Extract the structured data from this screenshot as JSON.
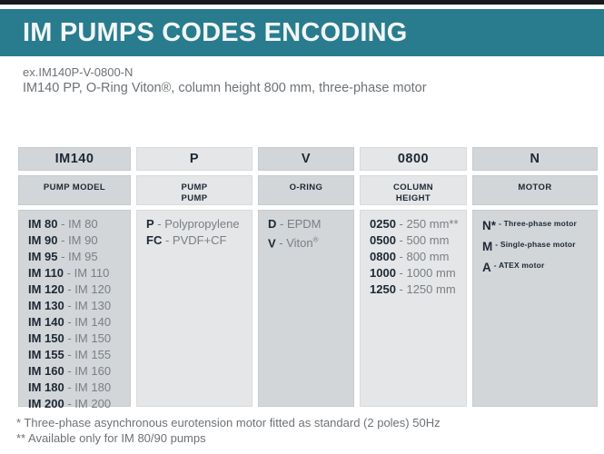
{
  "colors": {
    "accent_teal": "#287c8e",
    "top_bar": "#17191b",
    "dark_text": "#1d2834",
    "muted_text": "#6d7277",
    "cell_dark": "#d2d6d9",
    "cell_light": "#e4e6e8"
  },
  "header": {
    "title": "IM PUMPS CODES ENCODING",
    "example_code": "ex.IM140P-V-0800-N",
    "example_description": "IM140 PP, O-Ring Viton®, column height 800 mm, three-phase motor"
  },
  "table": {
    "columns": [
      {
        "code": "IM140",
        "label_lines": [
          "PUMP MODEL"
        ],
        "entry_style": "normal",
        "entries": [
          {
            "code": "IM 80",
            "desc": "IM 80"
          },
          {
            "code": "IM 90",
            "desc": "IM 90"
          },
          {
            "code": "IM 95",
            "desc": "IM 95"
          },
          {
            "code": "IM 110",
            "desc": "IM 110"
          },
          {
            "code": "IM 120",
            "desc": "IM 120"
          },
          {
            "code": "IM 130",
            "desc": "IM 130"
          },
          {
            "code": "IM 140",
            "desc": "IM 140"
          },
          {
            "code": "IM 150",
            "desc": "IM 150"
          },
          {
            "code": "IM 155",
            "desc": "IM 155"
          },
          {
            "code": "IM 160",
            "desc": "IM 160"
          },
          {
            "code": "IM 180",
            "desc": "IM 180"
          },
          {
            "code": "IM 200",
            "desc": "IM 200"
          }
        ]
      },
      {
        "code": "P",
        "label_lines": [
          "PUMP",
          "PUMP"
        ],
        "entry_style": "normal",
        "entries": [
          {
            "code": "P",
            "desc": "Polypropylene"
          },
          {
            "code": "FC",
            "desc": "PVDF+CF"
          }
        ]
      },
      {
        "code": "V",
        "label_lines": [
          "O-RING"
        ],
        "entry_style": "normal",
        "entries": [
          {
            "code": "D",
            "desc": "EPDM"
          },
          {
            "code": "V",
            "desc": "Viton®"
          }
        ]
      },
      {
        "code": "0800",
        "label_lines": [
          "COLUMN",
          "HEIGHT"
        ],
        "entry_style": "normal",
        "entries": [
          {
            "code": "0250",
            "desc": "250 mm**"
          },
          {
            "code": "0500",
            "desc": "500 mm"
          },
          {
            "code": "0800",
            "desc": "800 mm"
          },
          {
            "code": "1000",
            "desc": "1000 mm"
          },
          {
            "code": "1250",
            "desc": "1250 mm"
          }
        ]
      },
      {
        "code": "N",
        "label_lines": [
          "MOTOR"
        ],
        "entry_style": "motor",
        "entries": [
          {
            "code": "N*",
            "desc": "Three-phase motor"
          },
          {
            "code": "M",
            "desc": "Single-phase motor"
          },
          {
            "code": "A",
            "desc": "ATEX motor"
          }
        ]
      }
    ]
  },
  "footnotes": [
    "* Three-phase asynchronous eurotension motor fitted as standard (2 poles) 50Hz",
    "** Available only for IM 80/90 pumps"
  ]
}
